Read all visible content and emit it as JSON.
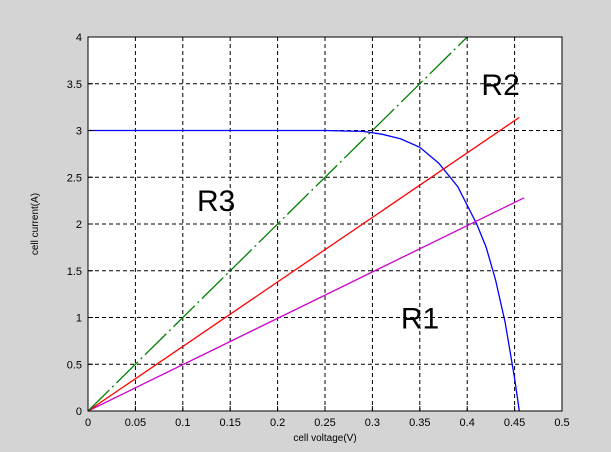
{
  "chart_data": {
    "type": "line",
    "title": "",
    "xlabel": "cell voltage(V)",
    "ylabel": "cell current(A)",
    "xlim": [
      0,
      0.5
    ],
    "ylim": [
      0,
      4
    ],
    "x_ticks": [
      "0",
      "0.05",
      "0.1",
      "0.15",
      "0.2",
      "0.25",
      "0.3",
      "0.35",
      "0.4",
      "0.45",
      "0.5"
    ],
    "y_ticks": [
      "0",
      "0.5",
      "1",
      "1.5",
      "2",
      "2.5",
      "3",
      "3.5",
      "4"
    ],
    "grid": true,
    "colors": {
      "iv": "#0000ff",
      "r1": "#cc00cc",
      "r2": "#ff0000",
      "r3": "#008000",
      "background": "#d4d4d4",
      "plot_bg": "#ffffff"
    },
    "series": [
      {
        "key": "iv",
        "style": "solid",
        "x": [
          0,
          0.05,
          0.1,
          0.15,
          0.2,
          0.25,
          0.27,
          0.29,
          0.31,
          0.33,
          0.35,
          0.37,
          0.39,
          0.41,
          0.42,
          0.43,
          0.44,
          0.45,
          0.455
        ],
        "y": [
          3.0,
          3.0,
          3.0,
          3.0,
          3.0,
          3.0,
          2.995,
          2.99,
          2.96,
          2.91,
          2.82,
          2.65,
          2.4,
          2.0,
          1.75,
          1.4,
          0.95,
          0.35,
          0
        ]
      },
      {
        "key": "r1",
        "style": "solid",
        "x": [
          0,
          0.46
        ],
        "y": [
          0,
          2.28
        ]
      },
      {
        "key": "r2",
        "style": "solid",
        "x": [
          0,
          0.455
        ],
        "y": [
          0,
          3.14
        ]
      },
      {
        "key": "r3",
        "style": "dashdot",
        "x": [
          0,
          0.4
        ],
        "y": [
          0,
          4.0
        ]
      }
    ],
    "annotations": [
      {
        "text": "R1",
        "x": 0.33,
        "y": 0.88
      },
      {
        "text": "R2",
        "x": 0.415,
        "y": 3.38
      },
      {
        "text": "R3",
        "x": 0.115,
        "y": 2.14
      }
    ]
  }
}
